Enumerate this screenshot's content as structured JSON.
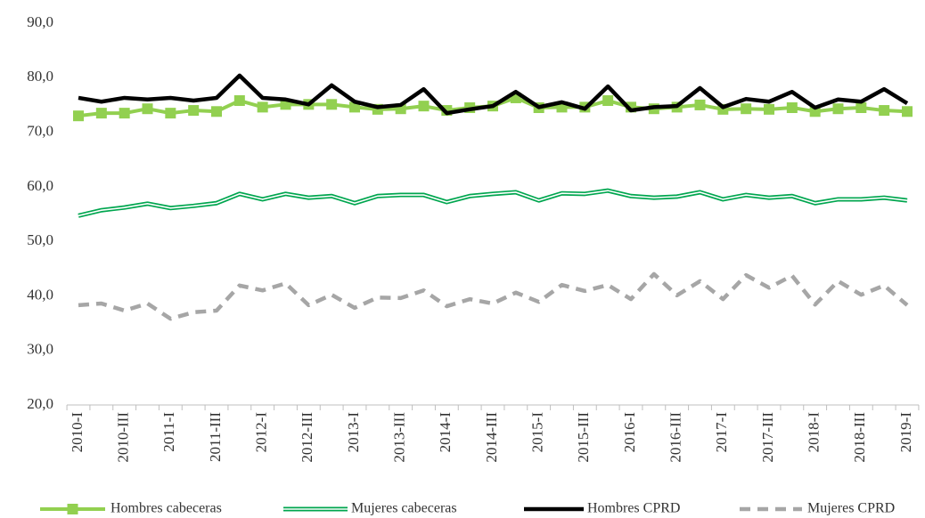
{
  "chart_data": {
    "type": "line",
    "categories": [
      "2010-I",
      null,
      "2010-III",
      null,
      "2011-I",
      null,
      "2011-III",
      null,
      "2012-I",
      null,
      "2012-III",
      null,
      "2013-I",
      null,
      "2013-III",
      null,
      "2014-I",
      null,
      "2014-III",
      null,
      "2015-I",
      null,
      "2015-III",
      null,
      "2016-I",
      null,
      "2016-III",
      null,
      "2017-I",
      null,
      "2017-III",
      null,
      "2018-I",
      null,
      "2018-III",
      null,
      "2019-I"
    ],
    "ylim": [
      20,
      90
    ],
    "yticks": [
      {
        "value": 20,
        "label": "20,0"
      },
      {
        "value": 30,
        "label": "30,0"
      },
      {
        "value": 40,
        "label": "40,0"
      },
      {
        "value": 50,
        "label": "50,0"
      },
      {
        "value": 60,
        "label": "60,0"
      },
      {
        "value": 70,
        "label": "70,0"
      },
      {
        "value": 80,
        "label": "80,0"
      },
      {
        "value": 90,
        "label": "90,0"
      }
    ],
    "grid": false,
    "legend": "bottom",
    "series": [
      {
        "name": "Hombres cabeceras",
        "color": "#92d050",
        "style": "square-marker",
        "values": [
          73.0,
          73.5,
          73.5,
          74.3,
          73.5,
          74.0,
          73.8,
          75.8,
          74.6,
          75.1,
          75.1,
          75.1,
          74.6,
          74.2,
          74.3,
          74.8,
          74.0,
          74.5,
          74.8,
          76.3,
          74.5,
          74.6,
          74.6,
          75.8,
          74.6,
          74.3,
          74.6,
          75.0,
          74.2,
          74.3,
          74.2,
          74.5,
          73.8,
          74.3,
          74.5,
          74.0,
          73.8
        ]
      },
      {
        "name": "Mujeres cabeceras",
        "color": "#00a64f",
        "style": "double",
        "values": [
          54.7,
          55.7,
          56.2,
          56.9,
          56.1,
          56.5,
          57.0,
          58.7,
          57.7,
          58.7,
          58.0,
          58.3,
          57.0,
          58.3,
          58.5,
          58.5,
          57.2,
          58.3,
          58.7,
          59.0,
          57.5,
          58.8,
          58.7,
          59.3,
          58.3,
          58.0,
          58.2,
          59.0,
          57.7,
          58.5,
          58.0,
          58.3,
          57.0,
          57.7,
          57.7,
          58.0,
          57.5
        ]
      },
      {
        "name": "Hombres  CPRD",
        "color": "#000000",
        "style": "solid",
        "values": [
          76.3,
          75.6,
          76.3,
          76.0,
          76.3,
          75.8,
          76.3,
          80.4,
          76.3,
          76.0,
          75.1,
          78.6,
          75.6,
          74.6,
          75.0,
          77.9,
          73.5,
          74.2,
          74.8,
          77.4,
          74.6,
          75.5,
          74.3,
          78.4,
          74.0,
          74.6,
          74.8,
          78.1,
          74.6,
          76.1,
          75.6,
          77.4,
          74.5,
          76.0,
          75.6,
          77.9,
          75.3
        ]
      },
      {
        "name": "Mujeres CPRD",
        "color": "#a6a6a6",
        "style": "dashed",
        "values": [
          38.3,
          38.6,
          37.3,
          38.6,
          35.8,
          37.0,
          37.3,
          41.9,
          41.0,
          42.3,
          38.3,
          40.2,
          37.8,
          39.7,
          39.6,
          41.0,
          38.1,
          39.4,
          38.6,
          40.6,
          38.9,
          42.0,
          40.9,
          42.0,
          39.4,
          44.0,
          40.1,
          42.7,
          39.4,
          43.8,
          41.5,
          43.7,
          38.4,
          42.7,
          40.2,
          41.9,
          38.3
        ]
      }
    ]
  }
}
